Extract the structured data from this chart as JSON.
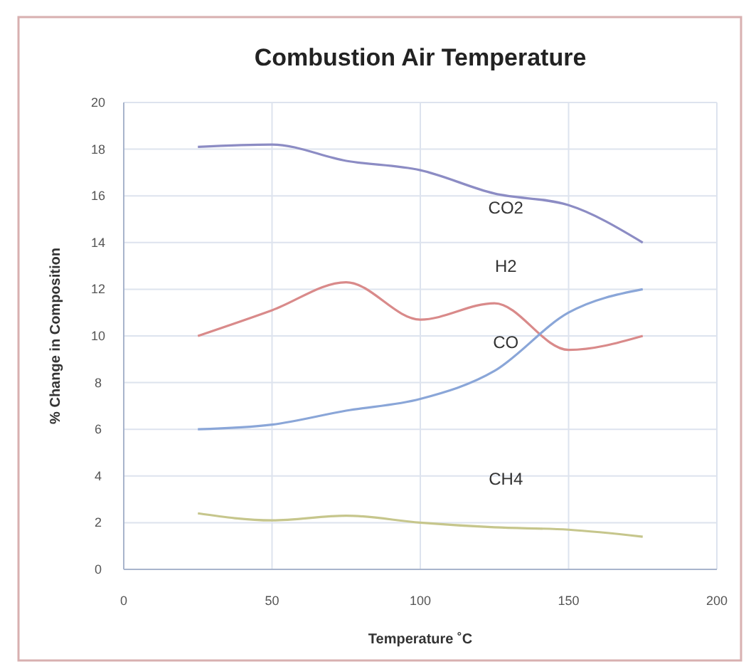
{
  "chart_data": {
    "type": "line",
    "title": "Combustion Air Temperature",
    "xlabel": "Temperature ˚C",
    "ylabel": "% Change in Composition",
    "x": [
      25,
      50,
      75,
      100,
      125,
      150,
      175
    ],
    "series": [
      {
        "name": "CO2",
        "color": "#8c8cc4",
        "values": [
          18.1,
          18.2,
          17.5,
          17.1,
          16.1,
          15.6,
          14.0
        ]
      },
      {
        "name": "H2",
        "color": "#d98a8a",
        "values": [
          10.0,
          11.1,
          12.3,
          10.7,
          11.4,
          9.4,
          10.0
        ]
      },
      {
        "name": "CO",
        "color": "#8aa6d8",
        "values": [
          6.0,
          6.2,
          6.8,
          7.3,
          8.5,
          11.0,
          12.0
        ]
      },
      {
        "name": "CH4",
        "color": "#c6c68c",
        "values": [
          2.4,
          2.1,
          2.3,
          2.0,
          1.8,
          1.7,
          1.4
        ]
      }
    ],
    "xlim": [
      0,
      200
    ],
    "xticks": [
      0,
      50,
      100,
      150,
      200
    ],
    "ylim": [
      0,
      20
    ],
    "yticks": [
      0,
      2,
      4,
      6,
      8,
      10,
      12,
      14,
      16,
      18,
      20
    ],
    "grid": true,
    "marker": "none",
    "line_style": "solid"
  }
}
